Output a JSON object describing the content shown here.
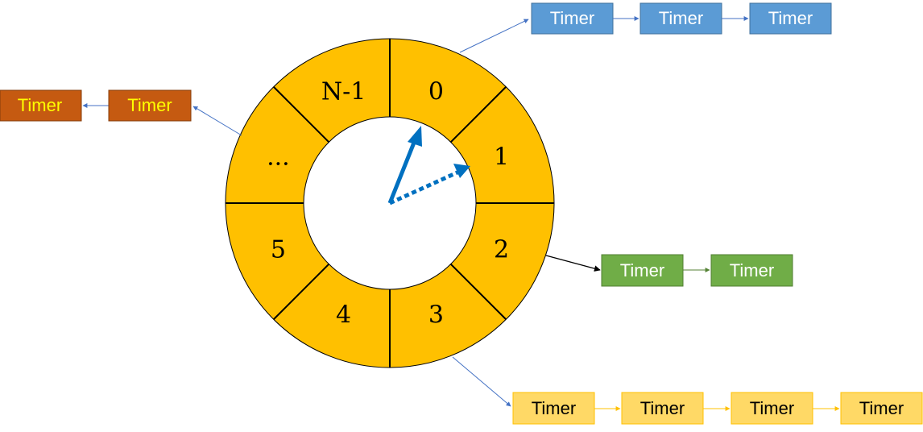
{
  "wheel": {
    "slots": [
      {
        "label": "0"
      },
      {
        "label": "1"
      },
      {
        "label": "2"
      },
      {
        "label": "3"
      },
      {
        "label": "4"
      },
      {
        "label": "5"
      },
      {
        "label": "..."
      },
      {
        "label": "N-1"
      }
    ],
    "fill": "#ffc000"
  },
  "lists": {
    "slot0": {
      "labels": [
        "Timer",
        "Timer",
        "Timer"
      ],
      "fill": "#5b9bd5",
      "text": "#ffffff",
      "arrow": "#4472c4"
    },
    "slot2": {
      "labels": [
        "Timer",
        "Timer"
      ],
      "fill": "#70ad47",
      "text": "#ffffff",
      "arrow": "#000000"
    },
    "slot3": {
      "labels": [
        "Timer",
        "Timer",
        "Timer",
        "Timer"
      ],
      "fill": "#ffd966",
      "text": "#000000",
      "arrow": "#ffc000"
    },
    "slotEllipsis": {
      "labels": [
        "Timer",
        "Timer"
      ],
      "fill": "#c55a11",
      "text": "#ffff00",
      "arrow": "#4472c4"
    }
  },
  "pointer": {
    "color": "#0070c0"
  }
}
